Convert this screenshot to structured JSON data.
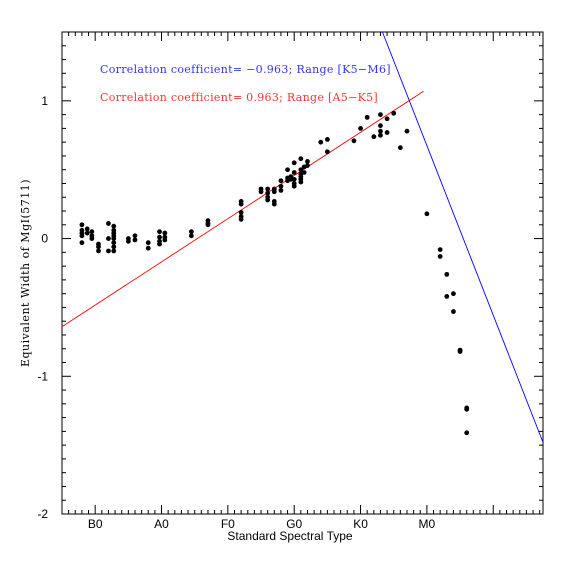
{
  "chart_data": {
    "type": "scatter",
    "xlabel": "Standard Spectral Type",
    "ylabel": "Equivalent Width of MgI(5711)",
    "xlim": [
      -0.5,
      6.75
    ],
    "ylim": [
      -2,
      1.5
    ],
    "x_ticks": [
      {
        "value": 0,
        "label": "B0"
      },
      {
        "value": 1,
        "label": "A0"
      },
      {
        "value": 2,
        "label": "F0"
      },
      {
        "value": 3,
        "label": "G0"
      },
      {
        "value": 4,
        "label": "K0"
      },
      {
        "value": 5,
        "label": "M0"
      }
    ],
    "y_ticks": [
      {
        "value": 1,
        "label": "1"
      },
      {
        "value": 0,
        "label": "0"
      },
      {
        "value": -1,
        "label": "-1"
      },
      {
        "value": -2,
        "label": "-2"
      }
    ],
    "y_minor_step": 0.1,
    "x_minor_step": 0.1,
    "grid": false,
    "annotations": [
      {
        "text": "Correlation coefficient= −0.963; Range [K5−M6]",
        "color": "#3333ff"
      },
      {
        "text": "Correlation coefficient= 0.963; Range [A5−K5]",
        "color": "#ff3333"
      }
    ],
    "fit_lines": [
      {
        "color": "#ff0000",
        "x": [
          -0.5,
          4.95
        ],
        "y": [
          -0.64,
          1.07
        ]
      },
      {
        "color": "#0000ff",
        "x": [
          4.33,
          6.75
        ],
        "y": [
          1.5,
          -1.48
        ]
      }
    ],
    "points": [
      {
        "x": -0.2,
        "y": 0.1
      },
      {
        "x": -0.2,
        "y": 0.06
      },
      {
        "x": -0.2,
        "y": 0.04
      },
      {
        "x": -0.2,
        "y": 0.02
      },
      {
        "x": -0.2,
        "y": -0.03
      },
      {
        "x": -0.12,
        "y": 0.07
      },
      {
        "x": -0.12,
        "y": 0.04
      },
      {
        "x": -0.05,
        "y": 0.05
      },
      {
        "x": -0.05,
        "y": 0.02
      },
      {
        "x": -0.05,
        "y": 0.0
      },
      {
        "x": 0.05,
        "y": -0.04
      },
      {
        "x": 0.05,
        "y": -0.06
      },
      {
        "x": 0.05,
        "y": -0.09
      },
      {
        "x": 0.2,
        "y": 0.11
      },
      {
        "x": 0.2,
        "y": 0.0
      },
      {
        "x": 0.2,
        "y": -0.09
      },
      {
        "x": 0.28,
        "y": 0.09
      },
      {
        "x": 0.28,
        "y": 0.06
      },
      {
        "x": 0.28,
        "y": 0.04
      },
      {
        "x": 0.28,
        "y": 0.02
      },
      {
        "x": 0.28,
        "y": 0.0
      },
      {
        "x": 0.28,
        "y": -0.03
      },
      {
        "x": 0.28,
        "y": -0.06
      },
      {
        "x": 0.28,
        "y": -0.09
      },
      {
        "x": 0.5,
        "y": 0.0
      },
      {
        "x": 0.5,
        "y": -0.02
      },
      {
        "x": 0.6,
        "y": 0.02
      },
      {
        "x": 0.6,
        "y": -0.01
      },
      {
        "x": 0.8,
        "y": -0.03
      },
      {
        "x": 0.8,
        "y": -0.07
      },
      {
        "x": 0.97,
        "y": 0.05
      },
      {
        "x": 0.97,
        "y": 0.01
      },
      {
        "x": 0.97,
        "y": -0.02
      },
      {
        "x": 0.97,
        "y": -0.04
      },
      {
        "x": 1.05,
        "y": 0.04
      },
      {
        "x": 1.05,
        "y": 0.01
      },
      {
        "x": 1.05,
        "y": -0.01
      },
      {
        "x": 1.45,
        "y": 0.05
      },
      {
        "x": 1.45,
        "y": 0.02
      },
      {
        "x": 1.7,
        "y": 0.13
      },
      {
        "x": 1.7,
        "y": 0.11
      },
      {
        "x": 1.7,
        "y": 0.1
      },
      {
        "x": 2.2,
        "y": 0.27
      },
      {
        "x": 2.2,
        "y": 0.25
      },
      {
        "x": 2.2,
        "y": 0.19
      },
      {
        "x": 2.2,
        "y": 0.16
      },
      {
        "x": 2.2,
        "y": 0.14
      },
      {
        "x": 2.5,
        "y": 0.36
      },
      {
        "x": 2.5,
        "y": 0.34
      },
      {
        "x": 2.6,
        "y": 0.36
      },
      {
        "x": 2.6,
        "y": 0.33
      },
      {
        "x": 2.6,
        "y": 0.3
      },
      {
        "x": 2.6,
        "y": 0.28
      },
      {
        "x": 2.7,
        "y": 0.36
      },
      {
        "x": 2.7,
        "y": 0.34
      },
      {
        "x": 2.7,
        "y": 0.27
      },
      {
        "x": 2.7,
        "y": 0.25
      },
      {
        "x": 2.8,
        "y": 0.42
      },
      {
        "x": 2.8,
        "y": 0.38
      },
      {
        "x": 2.8,
        "y": 0.35
      },
      {
        "x": 2.9,
        "y": 0.5
      },
      {
        "x": 2.9,
        "y": 0.44
      },
      {
        "x": 2.9,
        "y": 0.42
      },
      {
        "x": 2.95,
        "y": 0.45
      },
      {
        "x": 2.95,
        "y": 0.43
      },
      {
        "x": 3.0,
        "y": 0.55
      },
      {
        "x": 3.0,
        "y": 0.48
      },
      {
        "x": 3.0,
        "y": 0.43
      },
      {
        "x": 3.0,
        "y": 0.4
      },
      {
        "x": 3.0,
        "y": 0.38
      },
      {
        "x": 3.1,
        "y": 0.58
      },
      {
        "x": 3.1,
        "y": 0.5
      },
      {
        "x": 3.1,
        "y": 0.47
      },
      {
        "x": 3.1,
        "y": 0.45
      },
      {
        "x": 3.1,
        "y": 0.43
      },
      {
        "x": 3.1,
        "y": 0.41
      },
      {
        "x": 3.15,
        "y": 0.52
      },
      {
        "x": 3.15,
        "y": 0.48
      },
      {
        "x": 3.2,
        "y": 0.56
      },
      {
        "x": 3.2,
        "y": 0.53
      },
      {
        "x": 3.4,
        "y": 0.7
      },
      {
        "x": 3.5,
        "y": 0.72
      },
      {
        "x": 3.5,
        "y": 0.63
      },
      {
        "x": 3.9,
        "y": 0.71
      },
      {
        "x": 4.0,
        "y": 0.8
      },
      {
        "x": 4.1,
        "y": 0.88
      },
      {
        "x": 4.2,
        "y": 0.74
      },
      {
        "x": 4.3,
        "y": 0.9
      },
      {
        "x": 4.3,
        "y": 0.82
      },
      {
        "x": 4.3,
        "y": 0.78
      },
      {
        "x": 4.3,
        "y": 0.75
      },
      {
        "x": 4.4,
        "y": 0.87
      },
      {
        "x": 4.4,
        "y": 0.77
      },
      {
        "x": 4.5,
        "y": 0.91
      },
      {
        "x": 4.6,
        "y": 0.66
      },
      {
        "x": 4.7,
        "y": 0.78
      },
      {
        "x": 5.0,
        "y": 0.18
      },
      {
        "x": 5.2,
        "y": -0.08
      },
      {
        "x": 5.2,
        "y": -0.13
      },
      {
        "x": 5.3,
        "y": -0.26
      },
      {
        "x": 5.3,
        "y": -0.42
      },
      {
        "x": 5.4,
        "y": -0.4
      },
      {
        "x": 5.4,
        "y": -0.53
      },
      {
        "x": 5.5,
        "y": -0.81
      },
      {
        "x": 5.5,
        "y": -0.82
      },
      {
        "x": 5.6,
        "y": -1.23
      },
      {
        "x": 5.6,
        "y": -1.24
      },
      {
        "x": 5.6,
        "y": -1.41
      }
    ]
  }
}
